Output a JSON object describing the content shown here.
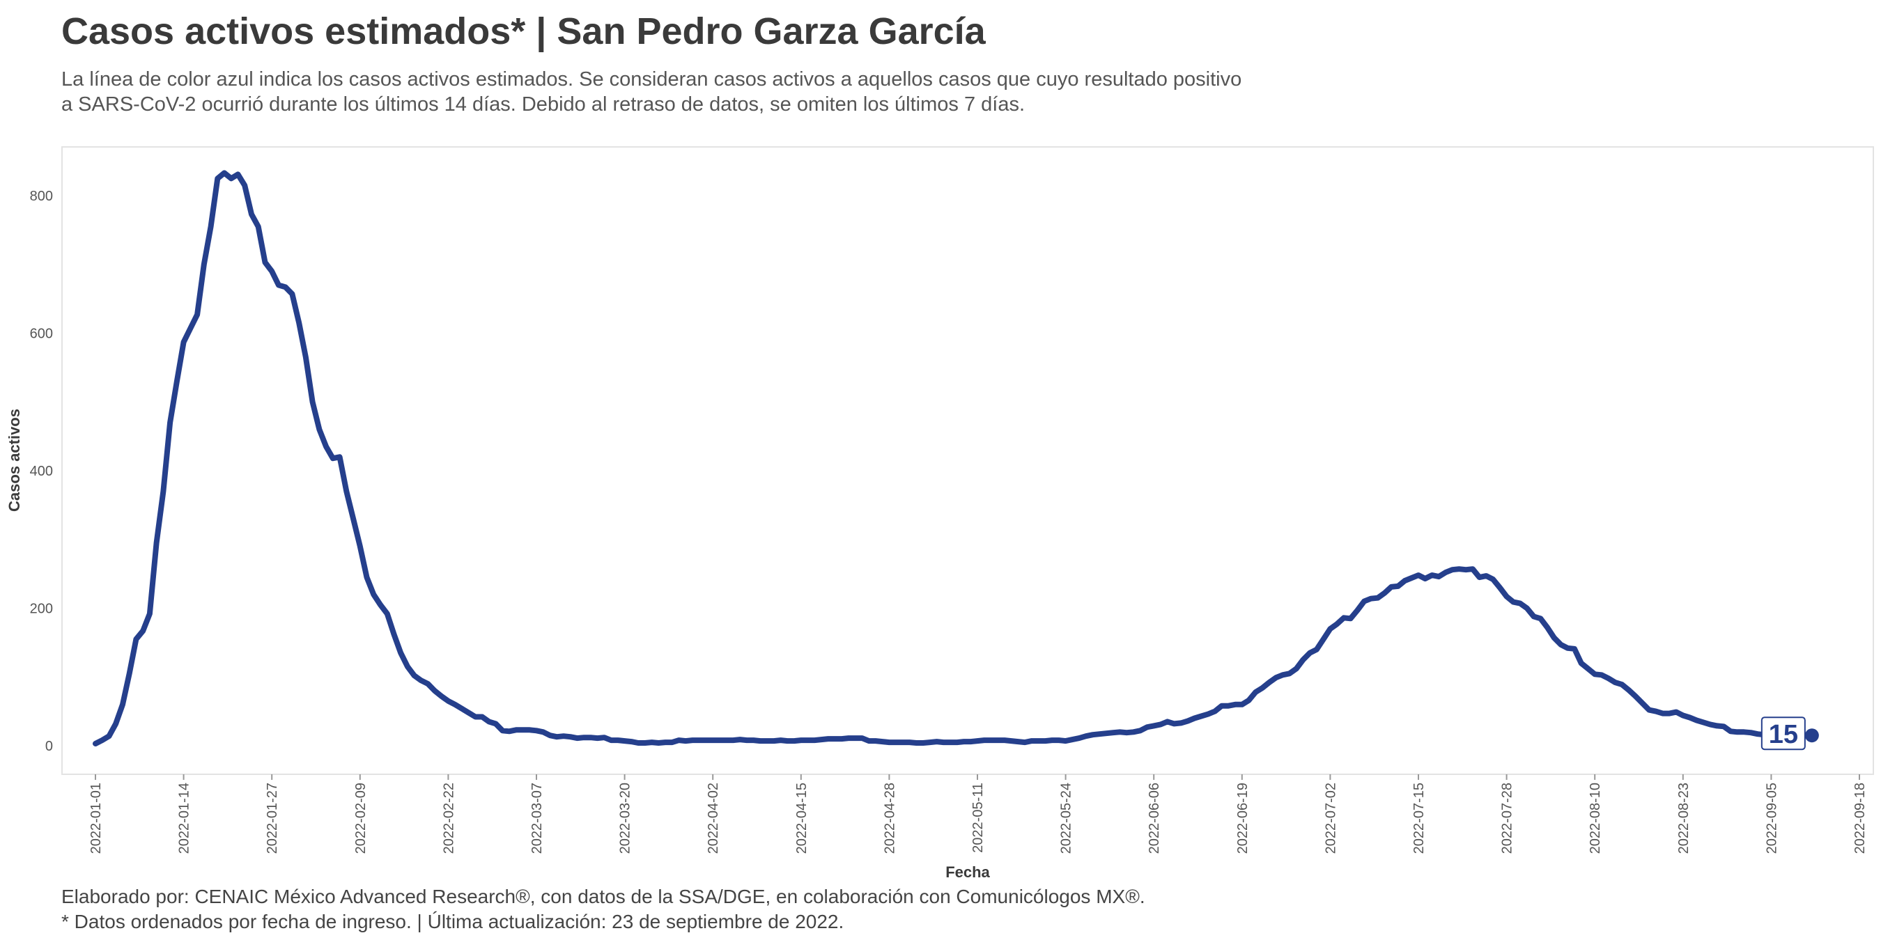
{
  "header": {
    "title": "Casos activos estimados* | San Pedro Garza García",
    "subtitle_line1": "La línea de color azul indica los casos activos estimados. Se consideran casos activos a aquellos casos que cuyo resultado positivo",
    "subtitle_line2": "a SARS-CoV-2 ocurrió durante los últimos 14 días. Debido al retraso de datos, se omiten los últimos 7 días."
  },
  "caption": {
    "line1": "Elaborado por: CENAIC México Advanced Research®, con datos de la SSA/DGE, en colaboración con Comunicólogos MX®.",
    "line2": "* Datos ordenados por fecha de ingreso. | Última actualización: 23 de septiembre de 2022."
  },
  "colors": {
    "line": "#253f8c",
    "panel_border": "#e3e3e3"
  },
  "chart_data": {
    "type": "line",
    "xlabel": "Fecha",
    "ylabel": "Casos activos",
    "x_start": "2022-01-01",
    "x_ticks": [
      "2022-01-01",
      "2022-01-14",
      "2022-01-27",
      "2022-02-09",
      "2022-02-22",
      "2022-03-07",
      "2022-03-20",
      "2022-04-02",
      "2022-04-15",
      "2022-04-28",
      "2022-05-11",
      "2022-05-24",
      "2022-06-06",
      "2022-06-19",
      "2022-07-02",
      "2022-07-15",
      "2022-07-28",
      "2022-08-10",
      "2022-08-23",
      "2022-09-05",
      "2022-09-18"
    ],
    "y_ticks": [
      0,
      200,
      400,
      600,
      800
    ],
    "ylim": [
      -40,
      870
    ],
    "grid": false,
    "last_value_label": "15",
    "series": [
      {
        "values": [
          3,
          8,
          14,
          32,
          60,
          105,
          155,
          167,
          192,
          295,
          370,
          470,
          530,
          587,
          607,
          627,
          700,
          755,
          825,
          833,
          825,
          831,
          815,
          773,
          755,
          703,
          690,
          670,
          667,
          657,
          615,
          565,
          500,
          460,
          435,
          418,
          420,
          370,
          330,
          290,
          245,
          220,
          205,
          192,
          162,
          135,
          115,
          102,
          95,
          90,
          80,
          72,
          65,
          60,
          54,
          48,
          42,
          42,
          35,
          32,
          22,
          21,
          23,
          23,
          23,
          22,
          20,
          15,
          13,
          14,
          13,
          11,
          12,
          12,
          11,
          12,
          8,
          8,
          7,
          6,
          4,
          4,
          5,
          4,
          5,
          5,
          8,
          7,
          8,
          8,
          8,
          8,
          8,
          8,
          8,
          9,
          8,
          8,
          7,
          7,
          7,
          8,
          7,
          7,
          8,
          8,
          8,
          9,
          10,
          10,
          10,
          11,
          11,
          11,
          7,
          7,
          6,
          5,
          5,
          5,
          5,
          4,
          4,
          5,
          6,
          5,
          5,
          5,
          6,
          6,
          7,
          8,
          8,
          8,
          8,
          7,
          6,
          5,
          7,
          7,
          7,
          8,
          8,
          7,
          9,
          11,
          14,
          16,
          17,
          18,
          19,
          20,
          19,
          20,
          22,
          27,
          29,
          31,
          35,
          32,
          33,
          36,
          40,
          43,
          46,
          50,
          58,
          58,
          60,
          60,
          66,
          78,
          84,
          92,
          99,
          103,
          105,
          112,
          125,
          135,
          140,
          155,
          170,
          177,
          186,
          185,
          197,
          210,
          214,
          215,
          222,
          231,
          232,
          240,
          244,
          248,
          243,
          248,
          246,
          252,
          256,
          257,
          256,
          257,
          245,
          247,
          242,
          230,
          217,
          209,
          207,
          200,
          188,
          185,
          172,
          157,
          147,
          142,
          141,
          120,
          112,
          104,
          103,
          98,
          92,
          89,
          81,
          72,
          62,
          52,
          50,
          47,
          47,
          49,
          44,
          41,
          37,
          34,
          31,
          29,
          28,
          21,
          20,
          20,
          19,
          17,
          16,
          13,
          12,
          12,
          13,
          14,
          15,
          15
        ]
      }
    ]
  }
}
